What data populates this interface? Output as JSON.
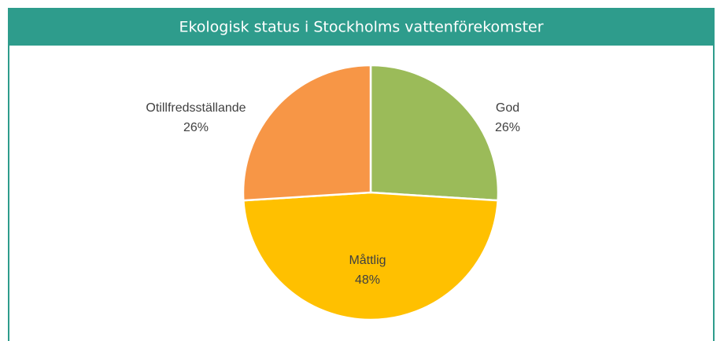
{
  "chart_data": {
    "type": "pie",
    "title": "Ekologisk status i Stockholms vattenförekomster",
    "categories": [
      "God",
      "Måttlig",
      "Otillfredsställande"
    ],
    "values": [
      26,
      48,
      26
    ],
    "value_labels": [
      "26%",
      "48%",
      "26%"
    ],
    "colors": [
      "#9bbb59",
      "#ffc000",
      "#f79646"
    ]
  }
}
